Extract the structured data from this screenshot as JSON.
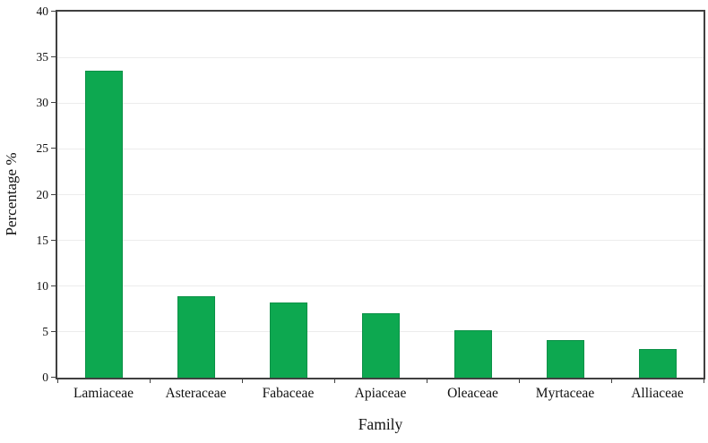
{
  "chart_data": {
    "type": "bar",
    "title": "",
    "categories": [
      "Lamiaceae",
      "Asteraceae",
      "Fabaceae",
      "Apiaceae",
      "Oleaceae",
      "Myrtaceae",
      "Alliaceae"
    ],
    "values": [
      33.5,
      8.9,
      8.2,
      7.0,
      5.2,
      4.1,
      3.1
    ],
    "xlabel": "Family",
    "ylabel": "Percentage %",
    "ylim": [
      0,
      40
    ],
    "ytick_step": 5,
    "ytick_labels": [
      "0",
      "5",
      "10",
      "15",
      "20",
      "25",
      "30",
      "35",
      "40"
    ],
    "legend_position": "none",
    "grid": "horizontal",
    "colors": {
      "bar_fill": "#0da850",
      "bar_border": "#0b9147",
      "plot_border": "#404040",
      "gridline": "#ececec",
      "text": "#111111",
      "background": "#ffffff"
    }
  }
}
